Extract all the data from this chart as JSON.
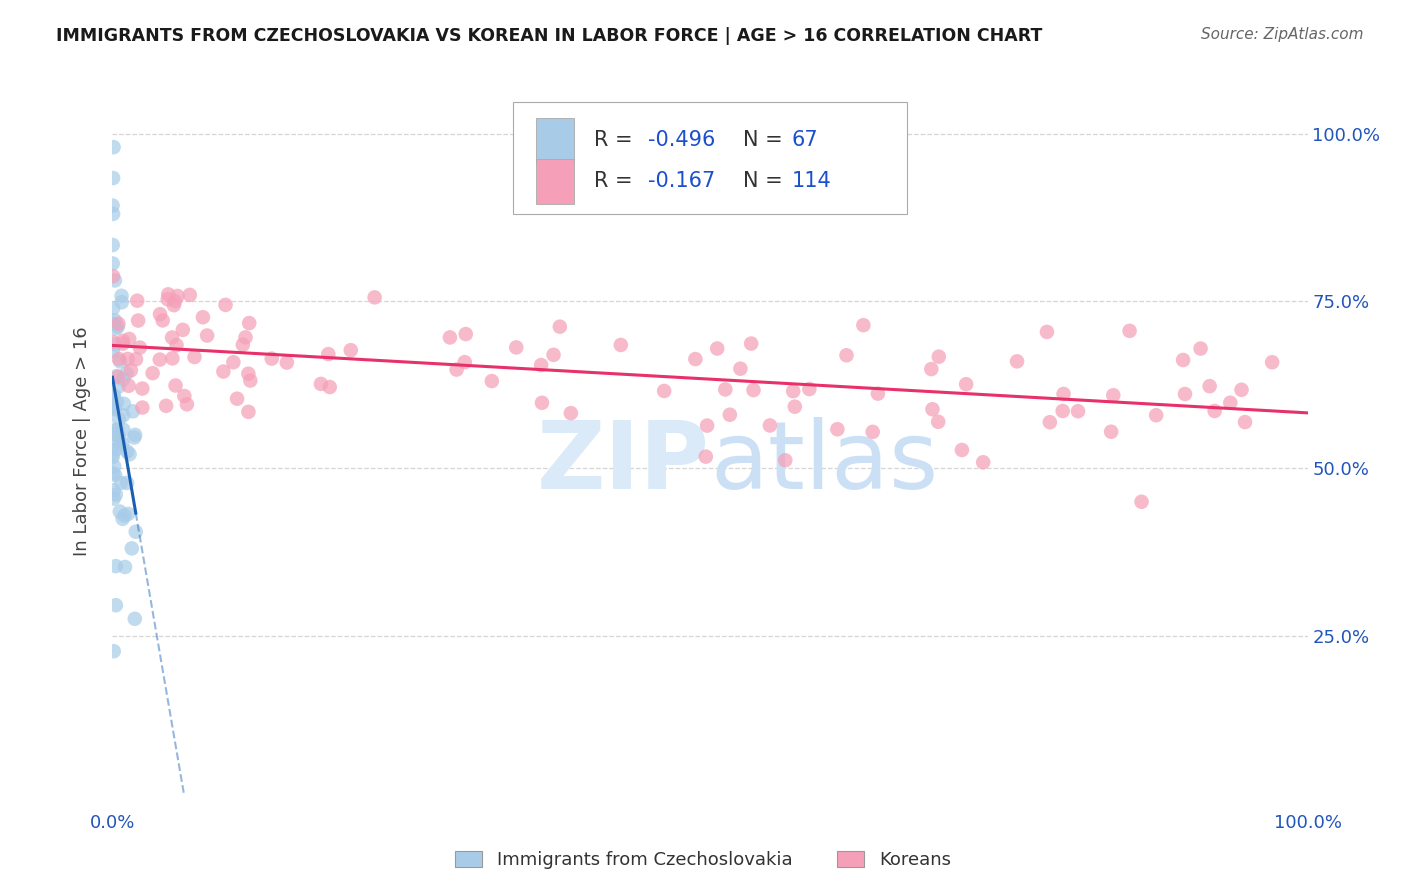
{
  "title": "IMMIGRANTS FROM CZECHOSLOVAKIA VS KOREAN IN LABOR FORCE | AGE > 16 CORRELATION CHART",
  "source": "Source: ZipAtlas.com",
  "ylabel": "In Labor Force | Age > 16",
  "yticks_right": [
    "100.0%",
    "75.0%",
    "50.0%",
    "25.0%"
  ],
  "ytick_vals": [
    1.0,
    0.75,
    0.5,
    0.25
  ],
  "color_czech": "#a8cce8",
  "color_korean": "#f5a0b8",
  "color_czech_line": "#1a5fb4",
  "color_korean_line": "#e8306a",
  "background": "#ffffff",
  "grid_color": "#cccccc",
  "title_color": "#1a1a1a",
  "axis_color": "#2255bb",
  "ylabel_color": "#444444",
  "r_color": "#cc0033",
  "n_color": "#2255bb",
  "source_color": "#666666",
  "legend_text_color": "#333333",
  "legend_val_color": "#1a50cc"
}
